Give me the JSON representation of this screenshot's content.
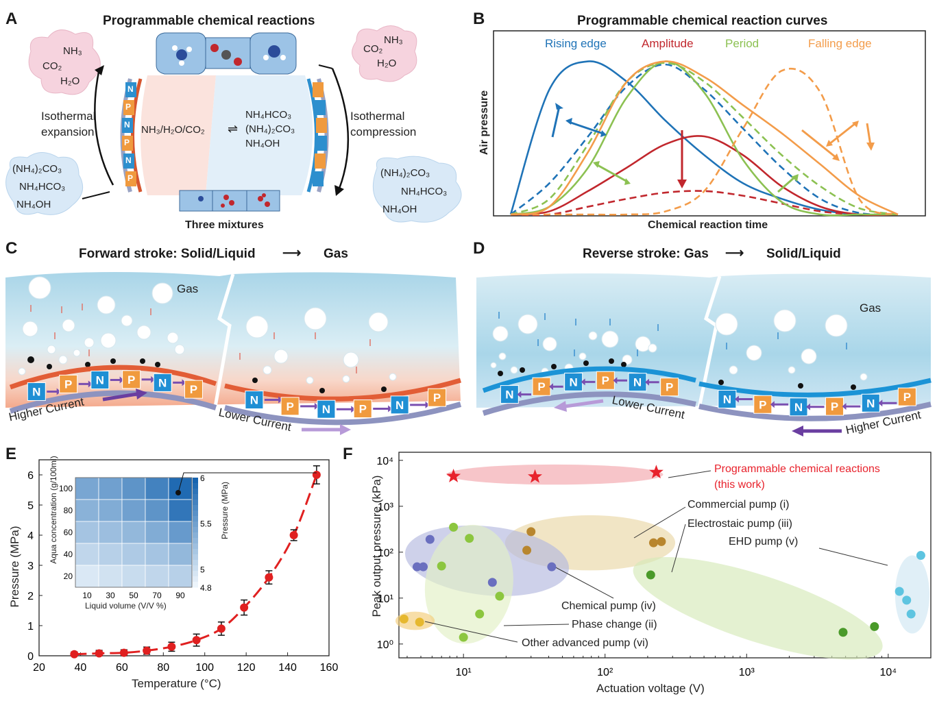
{
  "panel_labels": {
    "a": "A",
    "b": "B",
    "c": "C",
    "d": "D",
    "e": "E",
    "f": "F"
  },
  "panel_a": {
    "title": "Programmable chemical reactions",
    "left_top_cloud": [
      "NH₃",
      "CO₂",
      "H₂O"
    ],
    "left_bottom_cloud": [
      "(NH₄)₂CO₃",
      "NH₄HCO₃",
      "NH₄OH"
    ],
    "right_top_cloud": [
      "NH₃",
      "CO₂",
      "H₂O"
    ],
    "right_bottom_cloud": [
      "(NH₄)₂CO₃",
      "NH₄HCO₃",
      "NH₄OH"
    ],
    "left_process": [
      "Isothermal",
      "expansion"
    ],
    "right_process": [
      "Isothermal",
      "compression"
    ],
    "gas_side": "NH₃/H₂O/CO₂",
    "reaction_arrow": "⇌",
    "liquid_side": [
      "NH₄HCO₃",
      "(NH₄)₂CO₃",
      "NH₄OH"
    ],
    "mixtures_label": "Three mixtures",
    "peltier_letters": [
      "N",
      "P",
      "N",
      "P",
      "N",
      "P"
    ]
  },
  "panel_b": {
    "title": "Programmable chemical reaction curves",
    "ylabel": "Air pressure",
    "xlabel": "Chemical reaction time",
    "legend": [
      {
        "label": "Rising edge",
        "color": "#1f73b7"
      },
      {
        "label": "Amplitude",
        "color": "#c1272d"
      },
      {
        "label": "Period",
        "color": "#8cc152"
      },
      {
        "label": "Falling edge",
        "color": "#f39c4a"
      }
    ]
  },
  "panel_c": {
    "title_left": "Forward stroke: Solid/Liquid",
    "title_right": "Gas",
    "gas_label": "Gas",
    "current_left": "Higher Current",
    "current_right": "Lower Current",
    "left_blocks": [
      "N",
      "P",
      "N",
      "P",
      "N",
      "P"
    ],
    "right_blocks": [
      "N",
      "P",
      "N",
      "P",
      "N",
      "P"
    ]
  },
  "panel_d": {
    "title_left": "Reverse stroke: Gas",
    "title_right": "Solid/Liquid",
    "gas_label": "Gas",
    "current_left": "Lower Current",
    "current_right": "Higher Current",
    "left_blocks": [
      "N",
      "P",
      "N",
      "P",
      "N",
      "P"
    ],
    "right_blocks": [
      "N",
      "P",
      "N",
      "P",
      "N",
      "P"
    ]
  },
  "panel_e": {
    "xlabel": "Temperature (°C)",
    "ylabel": "Pressure (MPa)",
    "inset": {
      "xlabel": "Liquid volume (V/V %)",
      "ylabel": "Aqua concentration (g/100ml)",
      "colorbar_label": "Pressure (MPa)",
      "x_ticks": [
        "10",
        "30",
        "50",
        "70",
        "90"
      ],
      "y_ticks": [
        "100",
        "80",
        "60",
        "40",
        "20"
      ],
      "colorbar_ticks": [
        "6",
        "5.5",
        "5",
        "4.8"
      ]
    }
  },
  "panel_f": {
    "xlabel": "Actuation voltage (V)",
    "ylabel": "Peak output pressure (kPa)",
    "labels": {
      "this_work": [
        "Programmable chemical reactions",
        "(this work)"
      ],
      "commercial": "Commercial pump (i)",
      "electrostatic": "Electrostaic pump (iii)",
      "ehd": "EHD pump (v)",
      "chemical": "Chemical pump (iv)",
      "phase": "Phase change (ii)",
      "other": "Other advanced pump (vi)"
    },
    "x_ticks": [
      "10¹",
      "10²",
      "10³",
      "10⁴"
    ],
    "y_ticks": [
      "10⁴",
      "10³",
      "10²",
      "10¹",
      "10⁰"
    ]
  },
  "chart_data": [
    {
      "type": "line",
      "panel": "B",
      "title": "Programmable chemical reaction curves",
      "xlabel": "Chemical reaction time",
      "ylabel": "Air pressure",
      "x": [
        0,
        10,
        20,
        30,
        40,
        50,
        60,
        70,
        80,
        90,
        100
      ],
      "series": [
        {
          "name": "Rising edge",
          "color": "#1f73b7",
          "style": "solid",
          "values": [
            0,
            0.8,
            0.98,
            0.85,
            0.6,
            0.38,
            0.2,
            0.1,
            0.03,
            0,
            0
          ]
        },
        {
          "name": "Rising edge",
          "color": "#1f73b7",
          "style": "dashed",
          "values": [
            0,
            0.2,
            0.5,
            0.82,
            0.96,
            0.8,
            0.55,
            0.3,
            0.1,
            0.01,
            0
          ]
        },
        {
          "name": "Amplitude",
          "color": "#c1272d",
          "style": "solid",
          "values": [
            0,
            0.02,
            0.15,
            0.3,
            0.45,
            0.5,
            0.38,
            0.18,
            0.05,
            0,
            0
          ]
        },
        {
          "name": "Amplitude",
          "color": "#c1272d",
          "style": "dashed",
          "values": [
            0,
            0,
            0.05,
            0.1,
            0.14,
            0.15,
            0.12,
            0.07,
            0.02,
            0,
            0
          ]
        },
        {
          "name": "Period",
          "color": "#8cc152",
          "style": "solid",
          "values": [
            0,
            0.05,
            0.3,
            0.75,
            0.98,
            0.78,
            0.35,
            0.08,
            0,
            0,
            0
          ]
        },
        {
          "name": "Period",
          "color": "#8cc152",
          "style": "dashed",
          "values": [
            0,
            0.1,
            0.45,
            0.85,
            0.97,
            0.85,
            0.62,
            0.38,
            0.18,
            0.04,
            0
          ]
        },
        {
          "name": "Falling edge",
          "color": "#f39c4a",
          "style": "solid",
          "values": [
            0,
            0.05,
            0.4,
            0.85,
            0.98,
            0.88,
            0.7,
            0.52,
            0.32,
            0.12,
            0
          ]
        },
        {
          "name": "Falling edge",
          "color": "#f39c4a",
          "style": "dashed",
          "values": [
            0,
            0,
            0,
            0,
            0.02,
            0.15,
            0.55,
            0.92,
            0.78,
            0.1,
            0
          ]
        }
      ]
    },
    {
      "type": "line",
      "panel": "E",
      "xlabel": "Temperature (°C)",
      "ylabel": "Pressure (MPa)",
      "xlim": [
        20,
        160
      ],
      "ylim": [
        0,
        6.5
      ],
      "x_ticks": [
        20,
        40,
        60,
        80,
        100,
        120,
        140,
        160
      ],
      "y_ticks": [
        0,
        1,
        2,
        3,
        4,
        5,
        6
      ],
      "series": [
        {
          "name": "",
          "color": "#e02020",
          "x": [
            37,
            49,
            61,
            72,
            84,
            96,
            108,
            119,
            131,
            143,
            154
          ],
          "values": [
            0.05,
            0.08,
            0.1,
            0.17,
            0.3,
            0.52,
            0.9,
            1.6,
            2.6,
            4.0,
            6.0
          ],
          "errors": [
            0.08,
            0.1,
            0.1,
            0.12,
            0.15,
            0.2,
            0.22,
            0.25,
            0.22,
            0.18,
            0.3
          ]
        }
      ]
    },
    {
      "type": "heatmap",
      "panel": "E inset",
      "xlabel": "Liquid volume (V/V %)",
      "ylabel": "Aqua concentration (g/100ml)",
      "x": [
        10,
        30,
        50,
        70,
        90
      ],
      "y": [
        100,
        80,
        60,
        40,
        20
      ],
      "colorbar_label": "Pressure (MPa)",
      "zlim": [
        4.8,
        6
      ],
      "values": [
        [
          5.45,
          5.5,
          5.6,
          5.75,
          5.95
        ],
        [
          5.35,
          5.4,
          5.5,
          5.6,
          5.85
        ],
        [
          5.2,
          5.25,
          5.3,
          5.4,
          5.55
        ],
        [
          5.05,
          5.1,
          5.15,
          5.2,
          5.3
        ],
        [
          4.9,
          4.95,
          5.0,
          5.05,
          5.1
        ]
      ]
    },
    {
      "type": "scatter",
      "panel": "F",
      "xlabel": "Actuation voltage (V)",
      "ylabel": "Peak output pressure (kPa)",
      "xscale": "log",
      "yscale": "log",
      "xlim": [
        3.5,
        20000
      ],
      "ylim": [
        0.5,
        15000
      ],
      "series": [
        {
          "name": "Programmable chemical reactions (this work)",
          "color": "#e8222c",
          "marker": "star",
          "x": [
            8.5,
            32,
            230
          ],
          "values": [
            4500,
            4400,
            5500
          ]
        },
        {
          "name": "Commercial pump (i)",
          "color": "#b8862e",
          "x": [
            30,
            28,
            220,
            250
          ],
          "values": [
            280,
            110,
            160,
            170
          ]
        },
        {
          "name": "Phase change (ii)",
          "color": "#8cc63f",
          "x": [
            8.5,
            7,
            11,
            13,
            18,
            10
          ],
          "values": [
            350,
            50,
            200,
            4.5,
            11,
            1.4
          ]
        },
        {
          "name": "Electrostaic pump (iii)",
          "color": "#4a9a2a",
          "x": [
            210,
            4800,
            8000
          ],
          "values": [
            32,
            1.8,
            2.4
          ]
        },
        {
          "name": "Chemical pump (iv)",
          "color": "#6a6fbf",
          "x": [
            5.8,
            4.7,
            5.2,
            16,
            42
          ],
          "values": [
            190,
            48,
            48,
            22,
            48
          ]
        },
        {
          "name": "EHD pump (v)",
          "color": "#5ec4e0",
          "x": [
            17000,
            13500,
            12000,
            14500
          ],
          "values": [
            85,
            9,
            14,
            4.5
          ]
        },
        {
          "name": "Other advanced pump (vi)",
          "color": "#e6b82f",
          "x": [
            3.8,
            4.9
          ],
          "values": [
            3.5,
            3.0
          ]
        }
      ]
    }
  ]
}
